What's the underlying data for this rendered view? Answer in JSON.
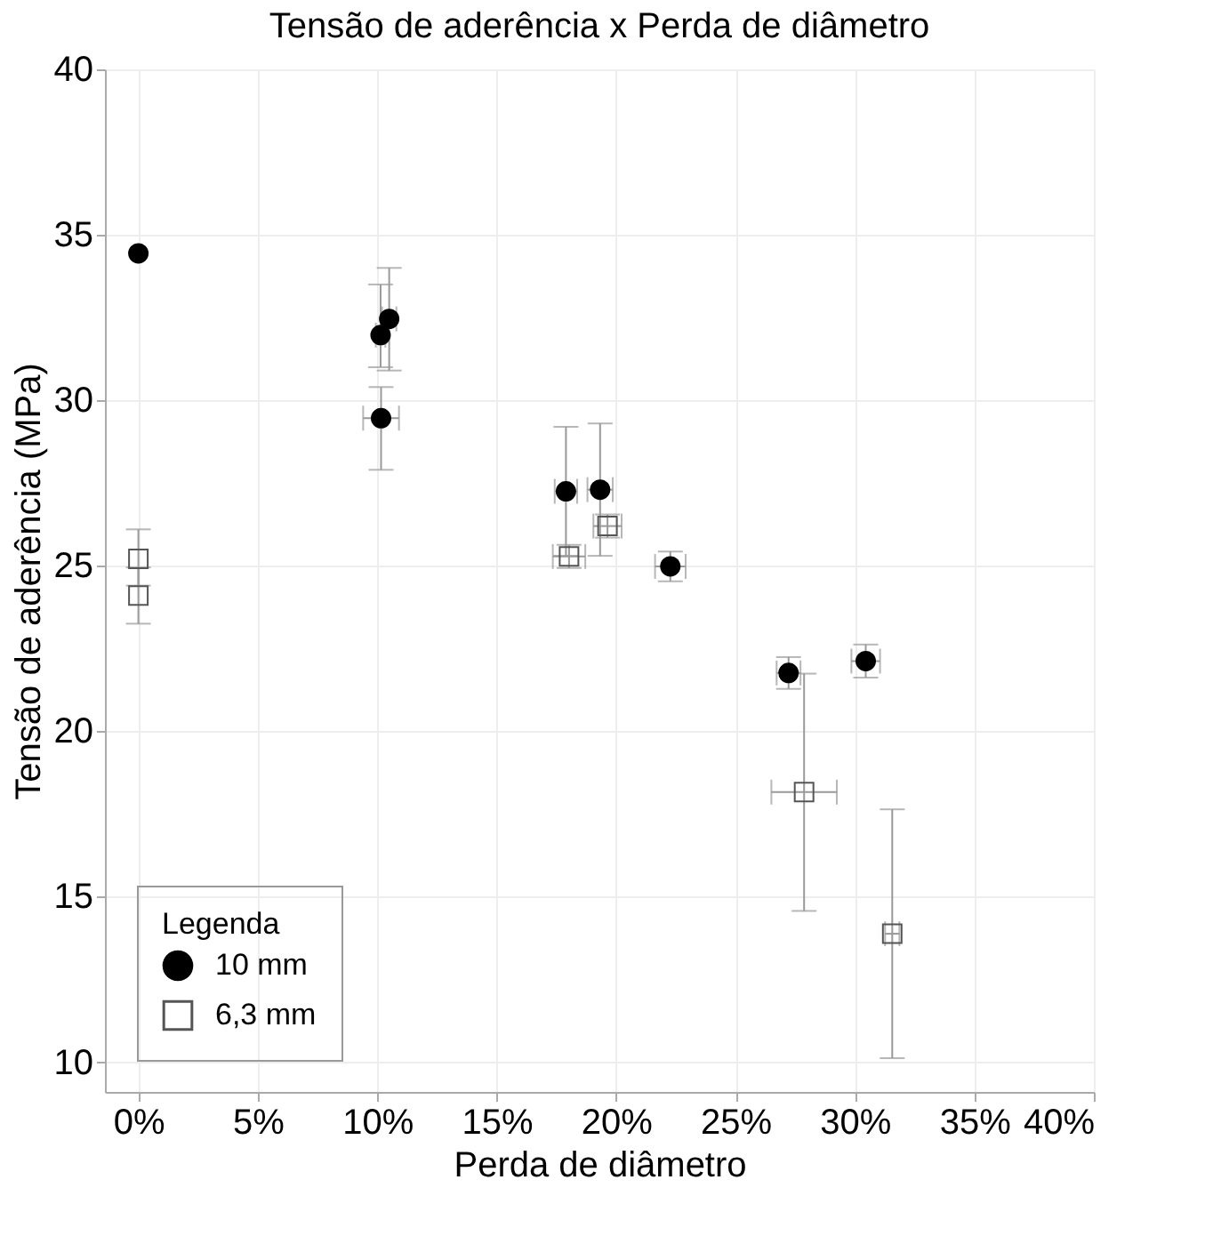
{
  "chart_data": {
    "type": "scatter",
    "title": "Tensão de aderência x Perda de diâmetro",
    "xlabel": "Perda de diâmetro",
    "ylabel": "Tensão de aderência (MPa)",
    "legend_title": "Legenda",
    "legend": "bottom left",
    "grid": true,
    "xlim": [
      -1.4,
      40
    ],
    "ylim": [
      9.1,
      40
    ],
    "xticks": [
      {
        "value": 0,
        "label": "0%"
      },
      {
        "value": 5,
        "label": "5%"
      },
      {
        "value": 10,
        "label": "10%"
      },
      {
        "value": 15,
        "label": "15%"
      },
      {
        "value": 20,
        "label": "20%"
      },
      {
        "value": 25,
        "label": "25%"
      },
      {
        "value": 30,
        "label": "30%"
      },
      {
        "value": 35,
        "label": "35%"
      },
      {
        "value": 40,
        "label": "40%"
      }
    ],
    "yticks": [
      10,
      15,
      20,
      25,
      30,
      35,
      40
    ],
    "series": [
      {
        "name": "10 mm",
        "color": "#000000",
        "marker": "circle",
        "x": [
          0,
          10.14,
          10.5,
          10.16,
          17.9,
          19.33,
          22.27,
          27.22,
          30.45
        ],
        "values": [
          34.44,
          31.97,
          32.46,
          29.46,
          27.25,
          27.3,
          24.98,
          21.76,
          22.12
        ],
        "errors": [
          null,
          [
            31.0,
            33.5
          ],
          [
            30.9,
            34.0
          ],
          [
            27.9,
            30.4
          ],
          [
            25.3,
            29.2
          ],
          [
            25.3,
            29.3
          ],
          0.45,
          0.48,
          0.5
        ],
        "xerrors": [
          null,
          0.2,
          0.3,
          0.75,
          0.47,
          0.53,
          0.64,
          0.5,
          0.6
        ]
      },
      {
        "name": "6,3 mm",
        "color": "#555555",
        "marker": "square",
        "x": [
          0,
          0,
          18.03,
          19.64,
          27.87,
          31.56
        ],
        "values": [
          25.21,
          24.1,
          25.28,
          26.2,
          18.16,
          13.88
        ],
        "errors": [
          [
            24.4,
            26.1
          ],
          [
            23.25,
            24.95
          ],
          0.35,
          0.35,
          [
            14.57,
            21.74
          ],
          [
            10.12,
            17.64
          ]
        ],
        "xerrors": [
          null,
          null,
          0.68,
          0.59,
          [
            26.5,
            29.24
          ],
          0.3
        ]
      }
    ]
  }
}
